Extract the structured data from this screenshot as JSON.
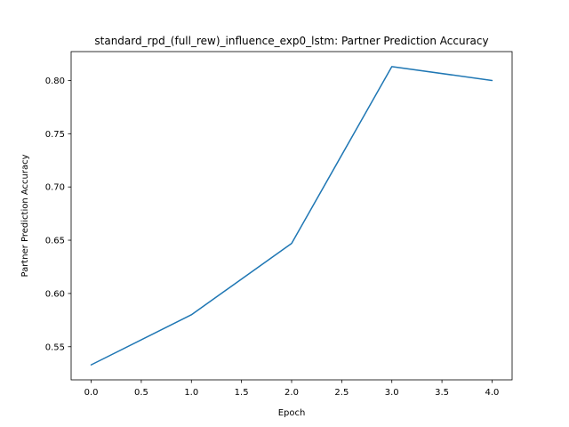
{
  "chart_data": {
    "type": "line",
    "title": "standard_rpd_(full_rew)_influence_exp0_lstm: Partner Prediction Accuracy",
    "xlabel": "Epoch",
    "ylabel": "Partner Prediction Accuracy",
    "x": [
      0,
      1,
      2,
      3,
      4
    ],
    "series": [
      {
        "values": [
          0.533,
          0.58,
          0.647,
          0.813,
          0.8
        ],
        "color": "#1f77b4"
      }
    ],
    "xlim": [
      -0.2,
      4.2
    ],
    "ylim": [
      0.5189,
      0.8271
    ],
    "xticks": [
      0.0,
      0.5,
      1.0,
      1.5,
      2.0,
      2.5,
      3.0,
      3.5,
      4.0
    ],
    "xtick_labels": [
      "0.0",
      "0.5",
      "1.0",
      "1.5",
      "2.0",
      "2.5",
      "3.0",
      "3.5",
      "4.0"
    ],
    "yticks": [
      0.55,
      0.6,
      0.65,
      0.7,
      0.75,
      0.8
    ],
    "ytick_labels": [
      "0.55",
      "0.60",
      "0.65",
      "0.70",
      "0.75",
      "0.80"
    ],
    "grid": false,
    "legend": false
  }
}
